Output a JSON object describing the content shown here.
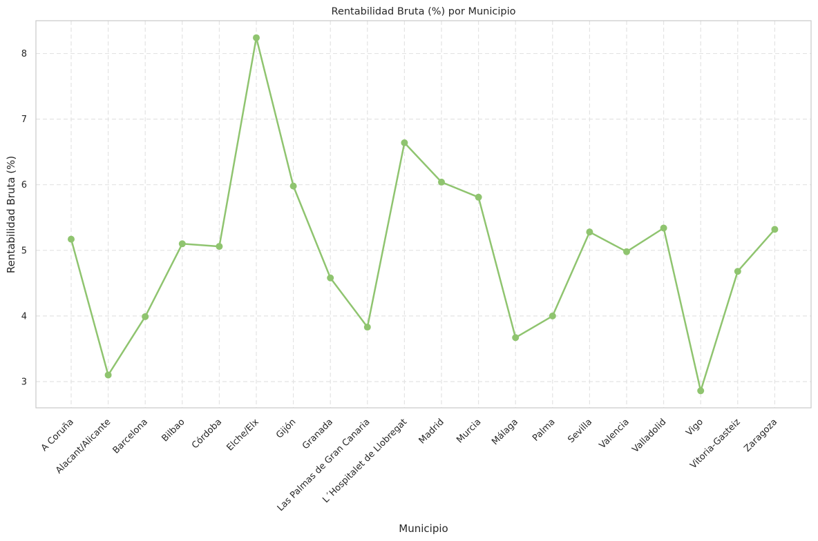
{
  "chart_data": {
    "type": "line",
    "title": "Rentabilidad Bruta (%) por Municipio",
    "xlabel": "Municipio",
    "ylabel": "Rentabilidad Bruta (%)",
    "categories": [
      "A Coruña",
      "Alacant/Alicante",
      "Barcelona",
      "Bilbao",
      "Córdoba",
      "Elche/Elx",
      "Gijón",
      "Granada",
      "Las Palmas de Gran Canaria",
      "L´Hospitalet de Llobregat",
      "Madrid",
      "Murcia",
      "Málaga",
      "Palma",
      "Sevilla",
      "Valencia",
      "Valladolid",
      "Vigo",
      "Vitoria-Gasteiz",
      "Zaragoza"
    ],
    "values": [
      5.17,
      3.1,
      3.99,
      5.1,
      5.06,
      8.24,
      5.98,
      4.58,
      3.83,
      6.64,
      6.04,
      5.81,
      3.67,
      4.0,
      5.28,
      4.98,
      5.34,
      2.86,
      4.68,
      5.32
    ],
    "ylim": [
      2.6,
      8.5
    ],
    "yticks": [
      3,
      4,
      5,
      6,
      7,
      8
    ],
    "grid": true,
    "color": "#8fc46f"
  }
}
